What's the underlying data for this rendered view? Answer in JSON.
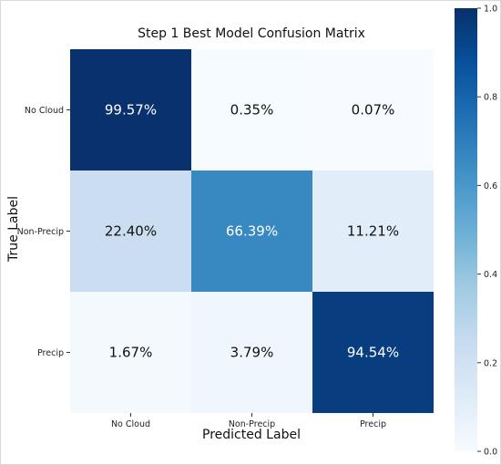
{
  "chart_data": {
    "type": "heatmap",
    "title": "Step 1 Best Model Confusion Matrix",
    "xlabel": "Predicted Label",
    "ylabel": "True Label",
    "x_categories": [
      "No Cloud",
      "Non-Precip",
      "Precip"
    ],
    "y_categories": [
      "No Cloud",
      "Non-Precip",
      "Precip"
    ],
    "values": [
      [
        0.9957,
        0.0035,
        0.0007
      ],
      [
        0.224,
        0.6639,
        0.1121
      ],
      [
        0.0167,
        0.0379,
        0.9454
      ]
    ],
    "cell_labels": [
      [
        "99.57%",
        "0.35%",
        "0.07%"
      ],
      [
        "22.40%",
        "66.39%",
        "11.21%"
      ],
      [
        "1.67%",
        "3.79%",
        "94.54%"
      ]
    ],
    "colorbar": {
      "range": [
        0.0,
        1.0
      ],
      "ticks": [
        "0.0",
        "0.2",
        "0.4",
        "0.6",
        "0.8",
        "1.0"
      ],
      "colormap": "Blues"
    },
    "grid": false
  }
}
